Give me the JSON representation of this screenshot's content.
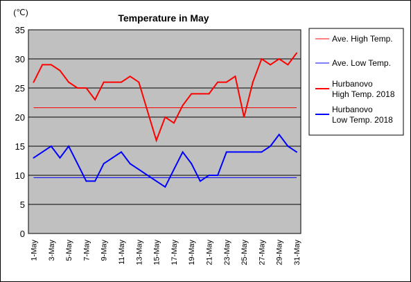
{
  "chart_data": {
    "type": "line",
    "title": "Temperature in May",
    "ylabel": "(℃)",
    "xlabel": "",
    "ylim": [
      0,
      35
    ],
    "yticks": [
      "0",
      "5",
      "10",
      "15",
      "20",
      "25",
      "30",
      "35"
    ],
    "x": [
      "1-May",
      "2-May",
      "3-May",
      "4-May",
      "5-May",
      "6-May",
      "7-May",
      "8-May",
      "9-May",
      "10-May",
      "11-May",
      "12-May",
      "13-May",
      "14-May",
      "15-May",
      "16-May",
      "17-May",
      "18-May",
      "19-May",
      "20-May",
      "21-May",
      "22-May",
      "23-May",
      "24-May",
      "25-May",
      "26-May",
      "27-May",
      "28-May",
      "29-May",
      "30-May",
      "31-May"
    ],
    "xtick_labels": [
      "1-May",
      "3-May",
      "5-May",
      "7-May",
      "9-May",
      "11-May",
      "13-May",
      "15-May",
      "17-May",
      "19-May",
      "21-May",
      "23-May",
      "25-May",
      "27-May",
      "29-May",
      "31-May"
    ],
    "grid": true,
    "legend_position": "right",
    "series": [
      {
        "name": "Ave. High Temp.",
        "color": "#ff0000",
        "style": "thin",
        "constant": 21.6
      },
      {
        "name": "Ave. Low Temp.",
        "color": "#0000ff",
        "style": "thin",
        "constant": 9.6
      },
      {
        "name": "Hurbanovo High Temp. 2018",
        "name_lines": [
          "Hurbanovo",
          "High Temp. 2018"
        ],
        "color": "#ff0000",
        "style": "thick",
        "values": [
          26,
          29,
          29,
          28,
          26,
          25,
          25,
          23,
          26,
          26,
          26,
          27,
          26,
          21,
          16,
          20,
          19,
          22,
          24,
          24,
          24,
          26,
          26,
          27,
          20,
          26,
          30,
          29,
          30,
          29,
          31
        ]
      },
      {
        "name": "Hurbanovo Low Temp. 2018",
        "name_lines": [
          "Hurbanovo",
          "Low Temp. 2018"
        ],
        "color": "#0000ff",
        "style": "thick",
        "values": [
          13,
          14,
          15,
          13,
          15,
          12,
          9,
          9,
          12,
          13,
          14,
          12,
          11,
          10,
          9,
          8,
          11,
          14,
          12,
          9,
          10,
          10,
          14,
          14,
          14,
          14,
          14,
          15,
          17,
          15,
          14
        ]
      }
    ]
  }
}
